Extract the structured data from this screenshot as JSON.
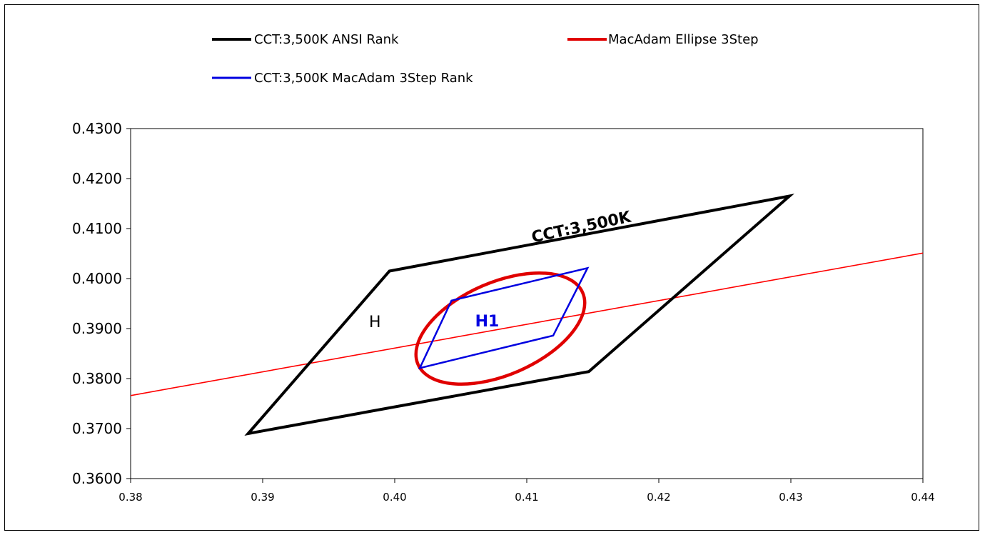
{
  "chart_data": {
    "type": "scatter",
    "title": "",
    "xlabel": "",
    "ylabel": "",
    "xlim": [
      0.38,
      0.44
    ],
    "ylim": [
      0.36,
      0.43
    ],
    "x_ticks": [
      "0.38",
      "0.39",
      "0.40",
      "0.41",
      "0.42",
      "0.43",
      "0.44"
    ],
    "y_ticks": [
      "0.4300",
      "0.4200",
      "0.4100",
      "0.4000",
      "0.3900",
      "0.3800",
      "0.3700",
      "0.3600"
    ],
    "grid": false,
    "legend_position": "top",
    "series": [
      {
        "name": "CCT:3,500K ANSI Rank",
        "color": "#000000",
        "closed": true,
        "x": [
          0.3889,
          0.3996,
          0.4299,
          0.4147
        ],
        "y": [
          0.369,
          0.4015,
          0.4165,
          0.3814
        ]
      },
      {
        "name": "MacAdam Ellipse 3Step",
        "color": "#e00000",
        "kind": "ellipse",
        "center": [
          0.408,
          0.39
        ],
        "semi_axes": [
          0.0068,
          0.0035
        ],
        "rotation_deg": 23.5
      },
      {
        "name": "CCT:3,500K MacAdam 3Step Rank",
        "color": "#0000e0",
        "closed": true,
        "x": [
          0.4019,
          0.4043,
          0.4146,
          0.412
        ],
        "y": [
          0.3821,
          0.3956,
          0.4021,
          0.3886
        ]
      }
    ],
    "reference_line": {
      "color": "#ff0000",
      "x": [
        0.38,
        0.44
      ],
      "y": [
        0.3766,
        0.4051
      ]
    },
    "annotations": [
      {
        "text": "CCT:3,500K",
        "x": 0.4142,
        "y": 0.4093,
        "color": "#000000",
        "rotate": -12,
        "bold": true
      },
      {
        "text": "H",
        "x": 0.3985,
        "y": 0.3903,
        "color": "#000000",
        "bold": false
      },
      {
        "text": "H1",
        "x": 0.407,
        "y": 0.3904,
        "color": "#0000e0",
        "bold": true
      }
    ]
  }
}
